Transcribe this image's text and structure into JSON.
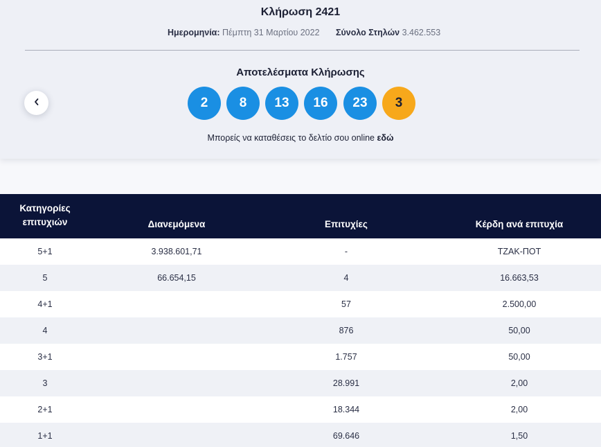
{
  "draw": {
    "title": "Κλήρωση 2421",
    "date_label": "Ημερομηνία:",
    "date_value": "Πέμπτη 31 Μαρτίου 2022",
    "total_label": "Σύνολο Στηλών",
    "total_value": "3.462.553"
  },
  "results": {
    "heading": "Αποτελέσματα Κλήρωσης",
    "numbers": [
      "2",
      "8",
      "13",
      "16",
      "23"
    ],
    "bonus": "3",
    "colors": {
      "main": "#1a8fe3",
      "bonus": "#f7a81b"
    }
  },
  "online_note": {
    "text": "Μπορείς να καταθέσεις το δελτίο σου online ",
    "link": "εδώ"
  },
  "nav": {
    "prev_icon": "chevron-left-icon"
  },
  "table": {
    "headers": {
      "category_line1": "Κατηγορίες",
      "category_line2": "επιτυχιών",
      "distributed": "Διανεμόμενα",
      "winners": "Επιτυχίες",
      "prize": "Κέρδη ανά επιτυχία"
    },
    "rows": [
      {
        "category": "5+1",
        "distributed": "3.938.601,71",
        "winners": "-",
        "prize": "ΤΖΑΚ-ΠΟΤ"
      },
      {
        "category": "5",
        "distributed": "66.654,15",
        "winners": "4",
        "prize": "16.663,53"
      },
      {
        "category": "4+1",
        "distributed": "",
        "winners": "57",
        "prize": "2.500,00"
      },
      {
        "category": "4",
        "distributed": "",
        "winners": "876",
        "prize": "50,00"
      },
      {
        "category": "3+1",
        "distributed": "",
        "winners": "1.757",
        "prize": "50,00"
      },
      {
        "category": "3",
        "distributed": "",
        "winners": "28.991",
        "prize": "2,00"
      },
      {
        "category": "2+1",
        "distributed": "",
        "winners": "18.344",
        "prize": "2,00"
      },
      {
        "category": "1+1",
        "distributed": "",
        "winners": "69.646",
        "prize": "1,50"
      }
    ]
  }
}
